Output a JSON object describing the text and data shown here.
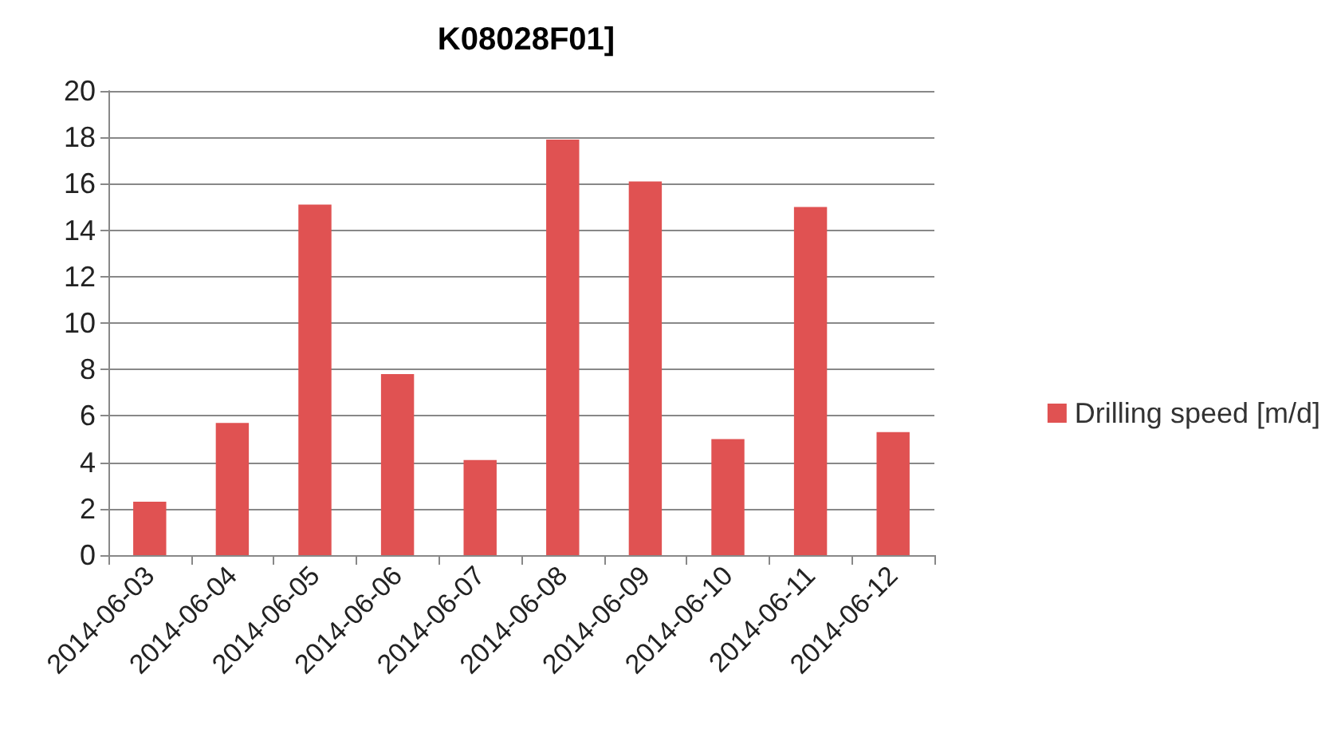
{
  "chart_data": {
    "type": "bar",
    "title": "K08028F01]",
    "categories": [
      "2014-06-03",
      "2014-06-04",
      "2014-06-05",
      "2014-06-06",
      "2014-06-07",
      "2014-06-08",
      "2014-06-09",
      "2014-06-10",
      "2014-06-11",
      "2014-06-12"
    ],
    "series": [
      {
        "name": "Drilling speed [m/d]",
        "color": "#e05252",
        "values": [
          2.3,
          5.7,
          15.1,
          7.8,
          4.1,
          17.9,
          16.1,
          5.0,
          15.0,
          5.3
        ]
      }
    ],
    "ylim": [
      0,
      20
    ],
    "yticks": [
      0,
      2,
      4,
      6,
      8,
      10,
      12,
      14,
      16,
      18,
      20
    ],
    "grid": "y",
    "legend": "right"
  }
}
